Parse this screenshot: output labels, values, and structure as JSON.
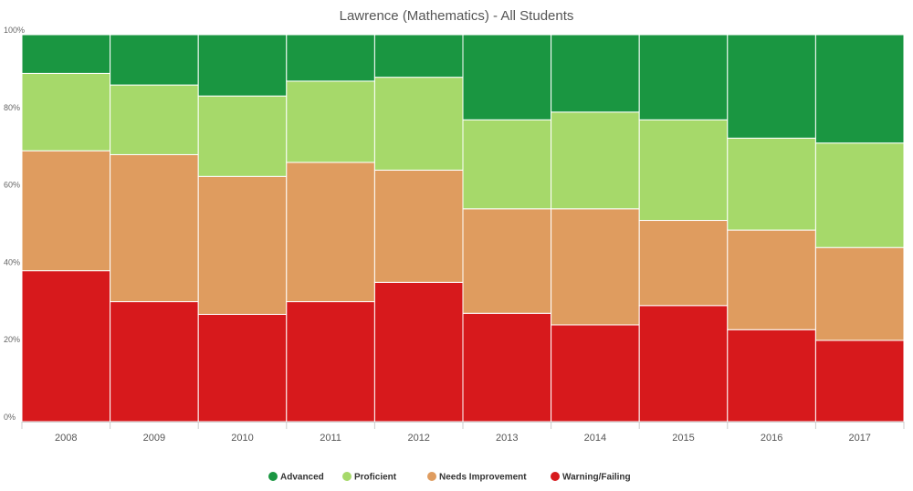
{
  "chart_data": {
    "type": "bar",
    "stacked": "percent",
    "title": "Lawrence (Mathematics) - All Students",
    "xlabel": "",
    "ylabel": "",
    "ylim": [
      0,
      100
    ],
    "y_ticks": [
      {
        "value": 0,
        "label": "0%"
      },
      {
        "value": 20,
        "label": "20%"
      },
      {
        "value": 40,
        "label": "40%"
      },
      {
        "value": 60,
        "label": "60%"
      },
      {
        "value": 80,
        "label": "80%"
      },
      {
        "value": 100,
        "label": "100%"
      }
    ],
    "categories": [
      "2008",
      "2009",
      "2010",
      "2011",
      "2012",
      "2013",
      "2014",
      "2015",
      "2016",
      "2017"
    ],
    "series": [
      {
        "name": "Warning/Failing",
        "color": "#d7191c",
        "values": [
          39,
          31,
          28,
          31,
          36,
          28,
          25,
          30,
          24,
          21
        ]
      },
      {
        "name": "Needs Improvement",
        "color": "#df9c5f",
        "values": [
          31,
          38,
          36,
          36,
          29,
          27,
          30,
          22,
          26,
          24
        ]
      },
      {
        "name": "Proficient",
        "color": "#a6d96a",
        "values": [
          20,
          18,
          21,
          21,
          24,
          23,
          25,
          26,
          24,
          27
        ]
      },
      {
        "name": "Advanced",
        "color": "#1a9641",
        "values": [
          10,
          13,
          16,
          12,
          11,
          22,
          20,
          22,
          27,
          28
        ]
      }
    ],
    "legend": {
      "position": "bottom",
      "order": [
        "Advanced",
        "Proficient",
        "Needs Improvement",
        "Warning/Failing"
      ]
    },
    "grid": false
  }
}
